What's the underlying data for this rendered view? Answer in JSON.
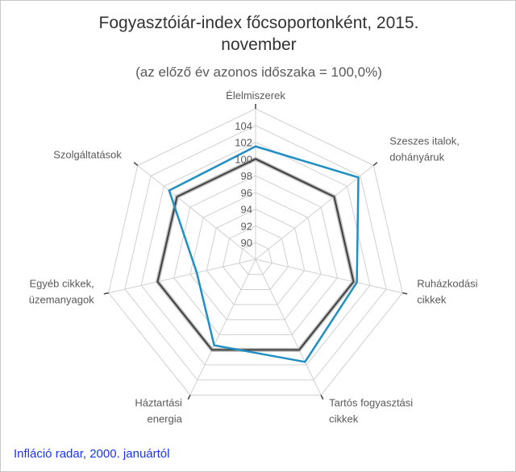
{
  "chart_data": {
    "type": "radar",
    "title_line1": "Fogyasztóiár-index főcsoportonként, 2015.",
    "title_line2": "november",
    "subtitle": "(az előző év azonos időszaka = 100,0%)",
    "categories": [
      [
        "Élelmiszerek"
      ],
      [
        "Szeszes italok,",
        "dohányáruk"
      ],
      [
        "Ruházkodási",
        "cikkek"
      ],
      [
        "Tartós fogyasztási",
        "cikkek"
      ],
      [
        "Háztartási",
        "energia"
      ],
      [
        "Egyéb cikkek,",
        "üzemanyagok"
      ],
      [
        "Szolgáltatások"
      ]
    ],
    "scale": {
      "min": 88,
      "max": 106,
      "tick_values": [
        90,
        92,
        94,
        96,
        98,
        100,
        102,
        104
      ],
      "ring_values": [
        88,
        90,
        92,
        94,
        96,
        98,
        100,
        102,
        104,
        106
      ]
    },
    "series": [
      {
        "values": [
          100,
          100,
          100,
          100,
          100,
          100,
          100
        ],
        "color": "#404040"
      },
      {
        "values": [
          101.5,
          103.7,
          100.4,
          101.6,
          99.4,
          95.2,
          101.2
        ],
        "color": "#1f8fc4"
      }
    ],
    "grid_color": "#d0d0d0",
    "label_color": "#595959"
  },
  "footer": {
    "link_text": "Infláció radar, 2000. januártól"
  }
}
